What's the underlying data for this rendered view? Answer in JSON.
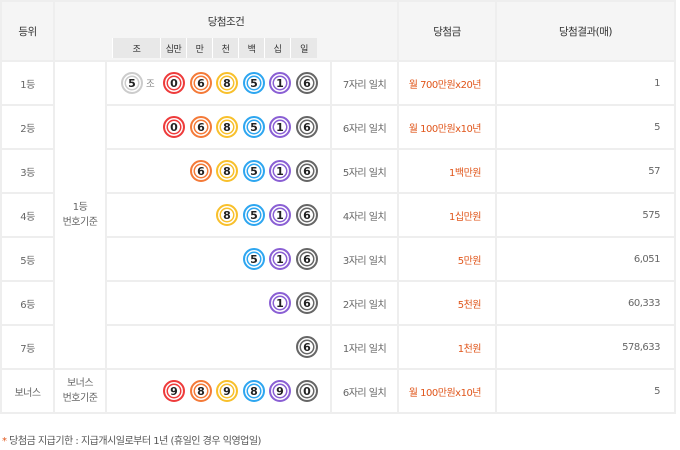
{
  "header": {
    "rank": "등위",
    "condition": "당첨조건",
    "prize": "당첨금",
    "result": "당첨결과(매)",
    "digit_labels": [
      "조",
      "십만",
      "만",
      "천",
      "백",
      "십",
      "일"
    ]
  },
  "ball_colors": [
    "#ee3b3b",
    "#f47a38",
    "#f8c02c",
    "#2ea6f0",
    "#8a5fd4",
    "#666666"
  ],
  "jo_color": "#cccccc",
  "jo_suffix": "조",
  "group_label_1": "1등\n번호기준",
  "group_label_bonus": "보너스\n번호기준",
  "rows": [
    {
      "rank": "1등",
      "jo": "5",
      "digits": [
        "0",
        "6",
        "8",
        "5",
        "1",
        "6"
      ],
      "match": "7자리 일치",
      "prize": "월 700만원x20년",
      "count": "1"
    },
    {
      "rank": "2등",
      "digits": [
        "0",
        "6",
        "8",
        "5",
        "1",
        "6"
      ],
      "match": "6자리 일치",
      "prize": "월 100만원x10년",
      "count": "5"
    },
    {
      "rank": "3등",
      "digits": [
        "6",
        "8",
        "5",
        "1",
        "6"
      ],
      "match": "5자리 일치",
      "prize": "1백만원",
      "count": "57"
    },
    {
      "rank": "4등",
      "digits": [
        "8",
        "5",
        "1",
        "6"
      ],
      "match": "4자리 일치",
      "prize": "1십만원",
      "count": "575"
    },
    {
      "rank": "5등",
      "digits": [
        "5",
        "1",
        "6"
      ],
      "match": "3자리 일치",
      "prize": "5만원",
      "count": "6,051"
    },
    {
      "rank": "6등",
      "digits": [
        "1",
        "6"
      ],
      "match": "2자리 일치",
      "prize": "5천원",
      "count": "60,333"
    },
    {
      "rank": "7등",
      "digits": [
        "6"
      ],
      "match": "1자리 일치",
      "prize": "1천원",
      "count": "578,633"
    },
    {
      "rank": "보너스",
      "digits": [
        "9",
        "8",
        "9",
        "8",
        "9",
        "0"
      ],
      "match": "6자리 일치",
      "prize": "월 100만원x10년",
      "count": "5"
    }
  ],
  "footer": {
    "mark": "*",
    "text": " 당첨금 지급기한 : 지급개시일로부터 1년 (휴일인 경우 익영업일)"
  }
}
